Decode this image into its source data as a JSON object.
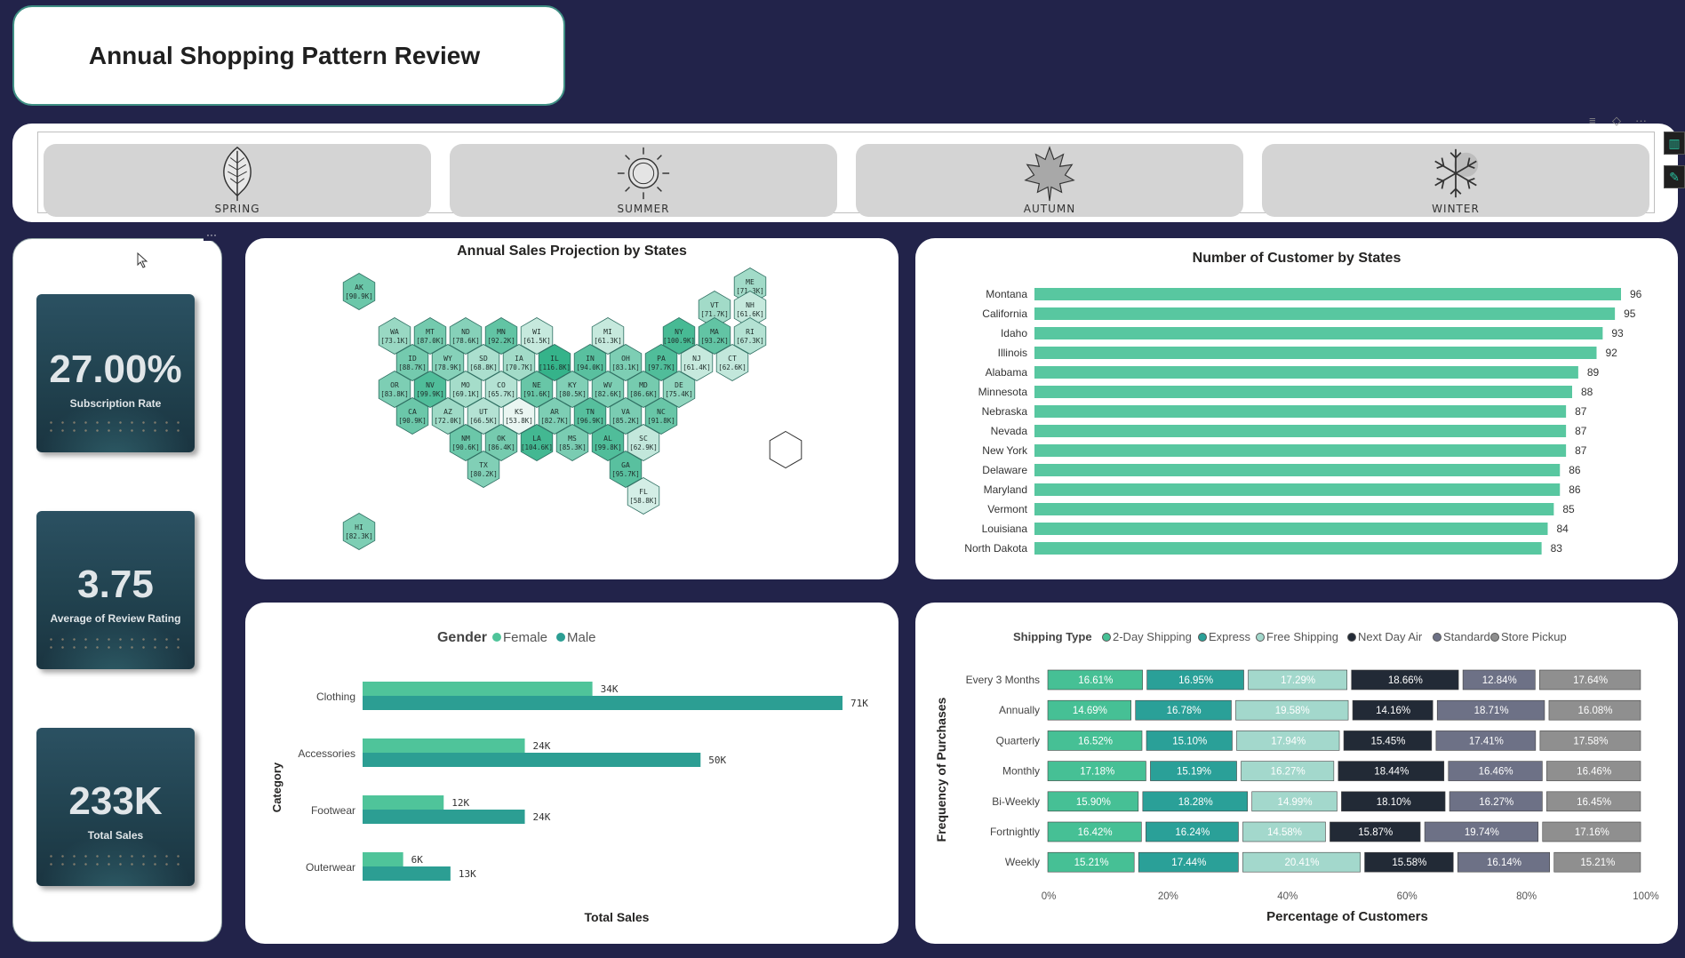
{
  "title": "Annual Shopping Pattern Review",
  "seasons": [
    {
      "label": "SPRING",
      "icon": "leaf-icon"
    },
    {
      "label": "SUMMER",
      "icon": "sun-icon"
    },
    {
      "label": "AUTUMN",
      "icon": "maple-leaf-icon"
    },
    {
      "label": "WINTER",
      "icon": "snowflake-icon"
    }
  ],
  "visual_tools": {
    "more": "···",
    "dots": "···"
  },
  "kpis": [
    {
      "value": "27.00%",
      "label": "Subscription Rate"
    },
    {
      "value": "3.75",
      "label": "Average of Review Rating"
    },
    {
      "value": "233K",
      "label": "Total Sales"
    }
  ],
  "colors": {
    "background": "#22234a",
    "female": "#4fc49a",
    "male": "#2c9e93",
    "two_day": "#46c095",
    "express": "#2aa098",
    "free": "#a3d8cc",
    "next_day": "#222a36",
    "standard": "#6d7186",
    "store_pickup": "#8f8f8f"
  },
  "hexmap": {
    "title": "Annual Sales Projection by States",
    "states": [
      {
        "code": "AK",
        "value": "90.9K",
        "level": 0.7
      },
      {
        "code": "ME",
        "value": "71.3K",
        "level": 0.4
      },
      {
        "code": "VT",
        "value": "71.7K",
        "level": 0.4
      },
      {
        "code": "NH",
        "value": "61.6K",
        "level": 0.2
      },
      {
        "code": "WA",
        "value": "73.1K",
        "level": 0.45
      },
      {
        "code": "MT",
        "value": "87.0K",
        "level": 0.65
      },
      {
        "code": "ND",
        "value": "78.6K",
        "level": 0.55
      },
      {
        "code": "MN",
        "value": "92.2K",
        "level": 0.75
      },
      {
        "code": "WI",
        "value": "61.5K",
        "level": 0.2
      },
      {
        "code": "MI",
        "value": "61.3K",
        "level": 0.2
      },
      {
        "code": "NY",
        "value": "100.9K",
        "level": 0.9
      },
      {
        "code": "MA",
        "value": "93.2K",
        "level": 0.75
      },
      {
        "code": "RI",
        "value": "67.3K",
        "level": 0.3
      },
      {
        "code": "ID",
        "value": "88.7K",
        "level": 0.65
      },
      {
        "code": "WY",
        "value": "78.9K",
        "level": 0.55
      },
      {
        "code": "SD",
        "value": "68.8K",
        "level": 0.35
      },
      {
        "code": "IA",
        "value": "70.7K",
        "level": 0.4
      },
      {
        "code": "IL",
        "value": "116.8K",
        "level": 1.0
      },
      {
        "code": "IN",
        "value": "94.0K",
        "level": 0.8
      },
      {
        "code": "OH",
        "value": "83.1K",
        "level": 0.6
      },
      {
        "code": "PA",
        "value": "97.7K",
        "level": 0.85
      },
      {
        "code": "NJ",
        "value": "61.4K",
        "level": 0.2
      },
      {
        "code": "CT",
        "value": "62.6K",
        "level": 0.22
      },
      {
        "code": "OR",
        "value": "83.8K",
        "level": 0.6
      },
      {
        "code": "NV",
        "value": "99.9K",
        "level": 0.85
      },
      {
        "code": "MO",
        "value": "69.1K",
        "level": 0.38
      },
      {
        "code": "CO",
        "value": "65.7K",
        "level": 0.3
      },
      {
        "code": "NE",
        "value": "91.6K",
        "level": 0.72
      },
      {
        "code": "KY",
        "value": "80.5K",
        "level": 0.58
      },
      {
        "code": "WV",
        "value": "82.6K",
        "level": 0.6
      },
      {
        "code": "MD",
        "value": "86.6K",
        "level": 0.64
      },
      {
        "code": "DE",
        "value": "75.4K",
        "level": 0.5
      },
      {
        "code": "CA",
        "value": "90.9K",
        "level": 0.7
      },
      {
        "code": "AZ",
        "value": "72.0K",
        "level": 0.42
      },
      {
        "code": "UT",
        "value": "66.5K",
        "level": 0.3
      },
      {
        "code": "KS",
        "value": "53.8K",
        "level": 0.0
      },
      {
        "code": "AR",
        "value": "82.7K",
        "level": 0.6
      },
      {
        "code": "TN",
        "value": "96.9K",
        "level": 0.82
      },
      {
        "code": "VA",
        "value": "85.2K",
        "level": 0.62
      },
      {
        "code": "NC",
        "value": "91.8K",
        "level": 0.72
      },
      {
        "code": "NM",
        "value": "90.6K",
        "level": 0.7
      },
      {
        "code": "OK",
        "value": "86.4K",
        "level": 0.64
      },
      {
        "code": "LA",
        "value": "104.6K",
        "level": 0.92
      },
      {
        "code": "MS",
        "value": "85.3K",
        "level": 0.62
      },
      {
        "code": "AL",
        "value": "99.8K",
        "level": 0.85
      },
      {
        "code": "SC",
        "value": "62.9K",
        "level": 0.22
      },
      {
        "code": "TX",
        "value": "80.2K",
        "level": 0.58
      },
      {
        "code": "GA",
        "value": "95.7K",
        "level": 0.8
      },
      {
        "code": "HI",
        "value": "82.3K",
        "level": 0.6
      },
      {
        "code": "FL",
        "value": "58.8K",
        "level": 0.12
      }
    ]
  },
  "chart_data": [
    {
      "type": "bar",
      "orientation": "horizontal",
      "title": "Number of Customer by States",
      "categories": [
        "Montana",
        "California",
        "Idaho",
        "Illinois",
        "Alabama",
        "Minnesota",
        "Nebraska",
        "Nevada",
        "New York",
        "Delaware",
        "Maryland",
        "Vermont",
        "Louisiana",
        "North Dakota"
      ],
      "values": [
        96,
        95,
        93,
        92,
        89,
        88,
        87,
        87,
        87,
        86,
        86,
        85,
        84,
        83
      ],
      "xlim": [
        0,
        96
      ]
    },
    {
      "type": "bar",
      "orientation": "horizontal",
      "title": "",
      "legend_title": "Gender",
      "ylabel": "Category",
      "xlabel": "Total Sales",
      "categories": [
        "Clothing",
        "Accessories",
        "Footwear",
        "Outerwear"
      ],
      "series": [
        {
          "name": "Female",
          "values": [
            34,
            24,
            12,
            6
          ],
          "labels": [
            "34K",
            "24K",
            "12K",
            "6K"
          ]
        },
        {
          "name": "Male",
          "values": [
            71,
            50,
            24,
            13
          ],
          "labels": [
            "71K",
            "50K",
            "24K",
            "13K"
          ]
        }
      ],
      "xlim": [
        0,
        71
      ]
    },
    {
      "type": "bar",
      "orientation": "horizontal",
      "stacked": "100%",
      "legend_title": "Shipping Type",
      "ylabel": "Frequency of Purchases",
      "xlabel": "Percentage of Customers",
      "x_ticks": [
        "0%",
        "20%",
        "40%",
        "60%",
        "80%",
        "100%"
      ],
      "categories": [
        "Every 3 Months",
        "Annually",
        "Quarterly",
        "Monthly",
        "Bi-Weekly",
        "Fortnightly",
        "Weekly"
      ],
      "series": [
        {
          "name": "2-Day Shipping",
          "values": [
            16.61,
            14.69,
            16.52,
            17.18,
            15.9,
            16.42,
            15.21
          ],
          "labels": [
            "16.61%",
            "14.69%",
            "16.52%",
            "17.18%",
            "15.90%",
            "16.42%",
            "15.21%"
          ]
        },
        {
          "name": "Express",
          "values": [
            16.95,
            16.78,
            15.1,
            15.19,
            18.28,
            16.24,
            17.44
          ],
          "labels": [
            "16.95%",
            "16.78%",
            "15.10%",
            "15.19%",
            "18.28%",
            "16.24%",
            "17.44%"
          ]
        },
        {
          "name": "Free Shipping",
          "values": [
            17.29,
            19.58,
            17.94,
            16.27,
            14.99,
            14.58,
            20.41
          ],
          "labels": [
            "17.29%",
            "19.58%",
            "17.94%",
            "16.27%",
            "14.99%",
            "14.58%",
            "20.41%"
          ]
        },
        {
          "name": "Next Day Air",
          "values": [
            18.66,
            14.16,
            15.45,
            18.44,
            18.1,
            15.87,
            15.58
          ],
          "labels": [
            "18.66%",
            "14.16%",
            "15.45%",
            "18.44%",
            "18.10%",
            "15.87%",
            "15.58%"
          ]
        },
        {
          "name": "Standard",
          "values": [
            12.84,
            18.71,
            17.41,
            16.46,
            16.27,
            19.74,
            16.14
          ],
          "labels": [
            "12.84%",
            "18.71%",
            "17.41%",
            "16.46%",
            "16.27%",
            "19.74%",
            "16.14%"
          ]
        },
        {
          "name": "Store Pickup",
          "values": [
            17.64,
            16.08,
            17.58,
            16.46,
            16.45,
            17.16,
            15.21
          ],
          "labels": [
            "17.64%",
            "16.08%",
            "17.58%",
            "16.46%",
            "16.45%",
            "17.16%",
            "15.21%"
          ]
        }
      ]
    }
  ]
}
